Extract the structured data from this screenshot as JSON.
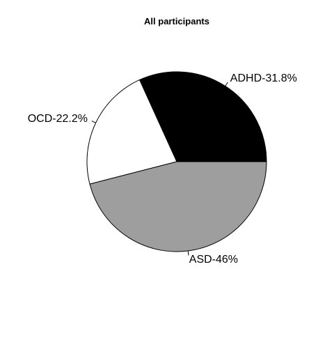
{
  "chart_data": {
    "type": "pie",
    "title": "All participants",
    "slices": [
      {
        "label": "ADHD-31.8%",
        "category": "ADHD",
        "value": 31.8,
        "color": "#000000"
      },
      {
        "label": "OCD-22.2%",
        "category": "OCD",
        "value": 22.2,
        "color": "#ffffff"
      },
      {
        "label": "ASD-46%",
        "category": "ASD",
        "value": 46.0,
        "color": "#9e9e9e"
      }
    ],
    "direction": "counter-clockwise",
    "start_angle_deg": 0,
    "border_color": "#000000",
    "legend": "none"
  }
}
